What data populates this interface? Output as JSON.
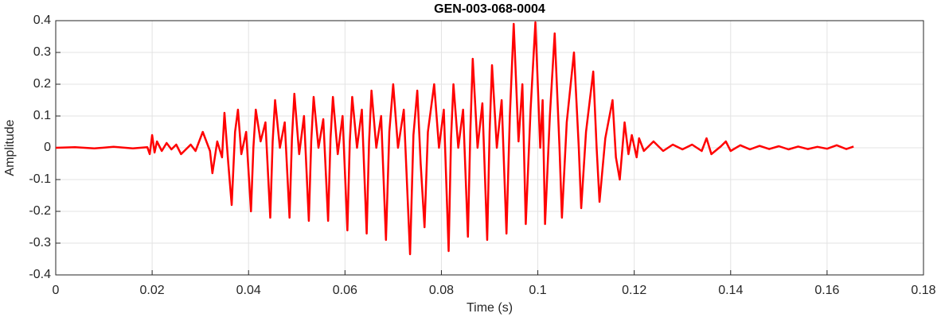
{
  "chart_data": {
    "type": "line",
    "title": "GEN-003-068-0004",
    "xlabel": "Time (s)",
    "ylabel": "Amplitude",
    "color": "#ff0000",
    "grid": true,
    "xlim": [
      0,
      0.18
    ],
    "ylim": [
      -0.4,
      0.4
    ],
    "xticks": [
      0,
      0.02,
      0.04,
      0.06,
      0.08,
      0.1,
      0.12,
      0.14,
      0.16,
      0.18
    ],
    "yticks": [
      -0.4,
      -0.3,
      -0.2,
      -0.1,
      0,
      0.1,
      0.2,
      0.3,
      0.4
    ],
    "x": [
      0,
      0.004,
      0.008,
      0.012,
      0.016,
      0.019,
      0.0195,
      0.02,
      0.0205,
      0.021,
      0.022,
      0.023,
      0.024,
      0.025,
      0.026,
      0.027,
      0.028,
      0.029,
      0.0305,
      0.032,
      0.0325,
      0.0335,
      0.0345,
      0.035,
      0.0358,
      0.0365,
      0.0372,
      0.0378,
      0.0385,
      0.0395,
      0.0405,
      0.041,
      0.0415,
      0.0425,
      0.0435,
      0.0445,
      0.045,
      0.0455,
      0.0465,
      0.0475,
      0.0485,
      0.049,
      0.0495,
      0.0505,
      0.0515,
      0.0525,
      0.053,
      0.0535,
      0.0545,
      0.0555,
      0.0565,
      0.057,
      0.0575,
      0.0585,
      0.0595,
      0.0605,
      0.061,
      0.0615,
      0.0625,
      0.0635,
      0.0645,
      0.065,
      0.0655,
      0.0665,
      0.0675,
      0.0685,
      0.0692,
      0.07,
      0.071,
      0.0722,
      0.0735,
      0.0742,
      0.075,
      0.0757,
      0.0765,
      0.0772,
      0.0785,
      0.0795,
      0.0805,
      0.0815,
      0.082,
      0.0825,
      0.0835,
      0.0845,
      0.0855,
      0.086,
      0.0865,
      0.0875,
      0.0885,
      0.0895,
      0.09,
      0.0905,
      0.0915,
      0.0925,
      0.0935,
      0.0942,
      0.095,
      0.096,
      0.0968,
      0.0975,
      0.0985,
      0.0995,
      0.1005,
      0.101,
      0.1015,
      0.1025,
      0.1035,
      0.1045,
      0.105,
      0.106,
      0.1075,
      0.1085,
      0.109,
      0.11,
      0.1115,
      0.1122,
      0.1128,
      0.114,
      0.1155,
      0.1162,
      0.117,
      0.118,
      0.1188,
      0.1195,
      0.1205,
      0.121,
      0.122,
      0.124,
      0.126,
      0.128,
      0.13,
      0.132,
      0.134,
      0.135,
      0.136,
      0.138,
      0.139,
      0.14,
      0.142,
      0.144,
      0.146,
      0.148,
      0.15,
      0.152,
      0.154,
      0.156,
      0.158,
      0.16,
      0.162,
      0.164,
      0.1655
    ],
    "values": [
      0,
      0.002,
      -0.002,
      0.003,
      -0.002,
      0.002,
      -0.02,
      0.04,
      -0.015,
      0.02,
      -0.01,
      0.015,
      -0.005,
      0.01,
      -0.02,
      -0.005,
      0.01,
      -0.01,
      0.05,
      -0.01,
      -0.08,
      0.02,
      -0.03,
      0.11,
      -0.05,
      -0.18,
      0.05,
      0.12,
      -0.02,
      0.05,
      -0.2,
      0,
      0.12,
      0.02,
      0.08,
      -0.22,
      0.02,
      0.15,
      0,
      0.08,
      -0.22,
      0.03,
      0.17,
      -0.02,
      0.1,
      -0.23,
      0.02,
      0.16,
      0,
      0.09,
      -0.23,
      0.03,
      0.16,
      -0.02,
      0.1,
      -0.26,
      0.02,
      0.16,
      0,
      0.12,
      -0.27,
      0.02,
      0.18,
      0,
      0.1,
      -0.29,
      0.05,
      0.2,
      0,
      0.12,
      -0.335,
      0.04,
      0.18,
      -0.05,
      -0.25,
      0.05,
      0.2,
      0,
      0.12,
      -0.325,
      0.03,
      0.2,
      0,
      0.12,
      -0.28,
      0.05,
      0.28,
      0,
      0.14,
      -0.29,
      0.05,
      0.26,
      0,
      0.15,
      -0.27,
      0.1,
      0.39,
      0.02,
      0.2,
      -0.24,
      0.12,
      0.395,
      0,
      0.15,
      -0.24,
      0.1,
      0.36,
      0,
      -0.22,
      0.08,
      0.3,
      0,
      -0.19,
      0.05,
      0.24,
      0,
      -0.17,
      0.03,
      0.15,
      -0.03,
      -0.1,
      0.08,
      -0.02,
      0.04,
      -0.03,
      0.03,
      -0.01,
      0.02,
      -0.01,
      0.01,
      -0.005,
      0.01,
      -0.01,
      0.03,
      -0.02,
      0.005,
      0.02,
      -0.01,
      0.008,
      -0.005,
      0.006,
      -0.004,
      0.005,
      -0.005,
      0.004,
      -0.004,
      0.003,
      -0.003,
      0.008,
      -0.004,
      0.004
    ]
  }
}
